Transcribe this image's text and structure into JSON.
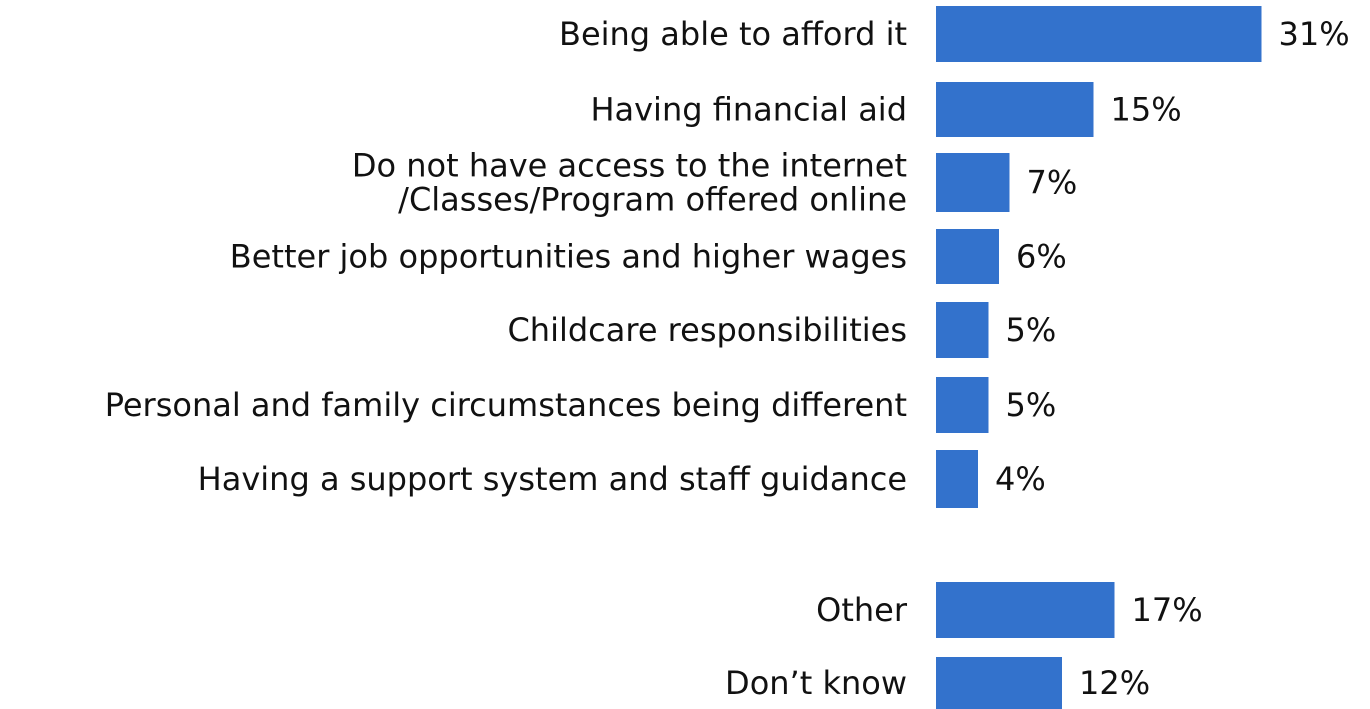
{
  "chart_data": {
    "type": "bar",
    "orientation": "horizontal",
    "bar_color": "#3372CC",
    "categories": [
      [
        "Being able to afford it"
      ],
      [
        "Having financial aid"
      ],
      [
        "Do not have access to the internet",
        "/Classes/Program offered online"
      ],
      [
        "Better job opportunities and higher wages"
      ],
      [
        "Childcare responsibilities"
      ],
      [
        "Personal and family circumstances being different"
      ],
      [
        "Having a support system and staff guidance"
      ],
      [
        "Other"
      ],
      [
        "Don’t know"
      ]
    ],
    "values": [
      31,
      15,
      7,
      6,
      5,
      5,
      4,
      17,
      12
    ],
    "value_labels": [
      "31%",
      "15%",
      "7%",
      "6%",
      "5%",
      "5%",
      "4%",
      "17%",
      "12%"
    ],
    "unit": "%",
    "grid": false,
    "legend": "none"
  }
}
